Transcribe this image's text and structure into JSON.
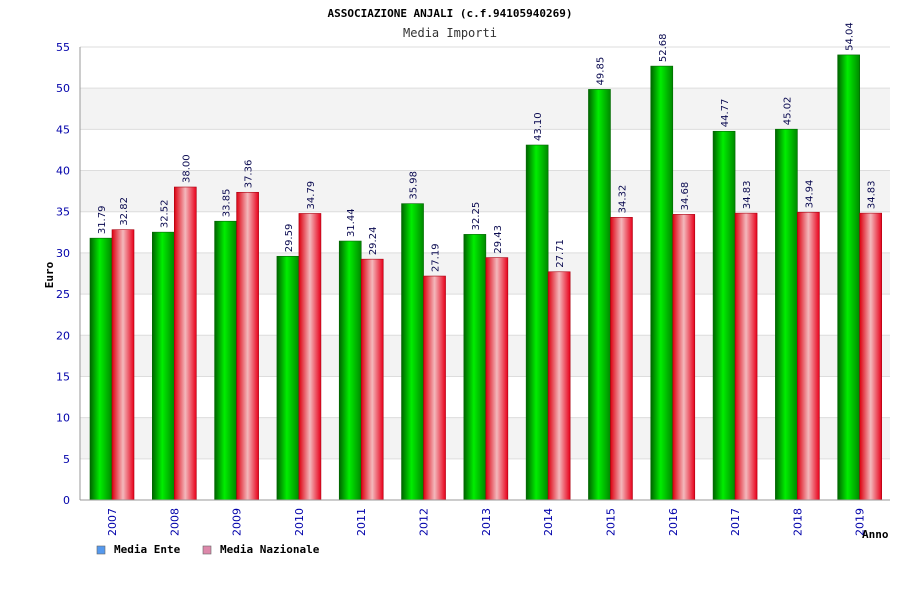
{
  "chart_data": {
    "type": "bar",
    "title": "ASSOCIAZIONE ANJALI (c.f.94105940269)",
    "subtitle": "Media Importi",
    "xlabel": "Anno",
    "ylabel": "Euro",
    "ylim": [
      0,
      55
    ],
    "yticks": [
      0,
      5,
      10,
      15,
      20,
      25,
      30,
      35,
      40,
      45,
      50,
      55
    ],
    "grid": true,
    "legend_position": "bottom-left",
    "categories": [
      "2007",
      "2008",
      "2009",
      "2010",
      "2011",
      "2012",
      "2013",
      "2014",
      "2015",
      "2016",
      "2017",
      "2018",
      "2019"
    ],
    "series": [
      {
        "name": "Media Ente",
        "color": "#00c000",
        "legend_color": "#5599ee",
        "values": [
          31.79,
          32.52,
          33.85,
          29.59,
          31.44,
          35.98,
          32.25,
          43.1,
          49.85,
          52.68,
          44.77,
          45.02,
          54.04
        ],
        "labels": [
          "31.79",
          "32.52",
          "33.85",
          "29.59",
          "31.44",
          "35.98",
          "32.25",
          "43.10",
          "49.85",
          "52.68",
          "44.77",
          "45.02",
          "54.04"
        ]
      },
      {
        "name": "Media Nazionale",
        "color": "#ee1122",
        "legend_color": "#dd88aa",
        "values": [
          32.82,
          38.0,
          37.36,
          34.79,
          29.24,
          27.19,
          29.43,
          27.71,
          34.32,
          34.68,
          34.83,
          34.94,
          34.83
        ],
        "labels": [
          "32.82",
          "38.00",
          "37.36",
          "34.79",
          "29.24",
          "27.19",
          "29.43",
          "27.71",
          "34.32",
          "34.68",
          "34.83",
          "34.94",
          "34.83"
        ]
      }
    ]
  }
}
